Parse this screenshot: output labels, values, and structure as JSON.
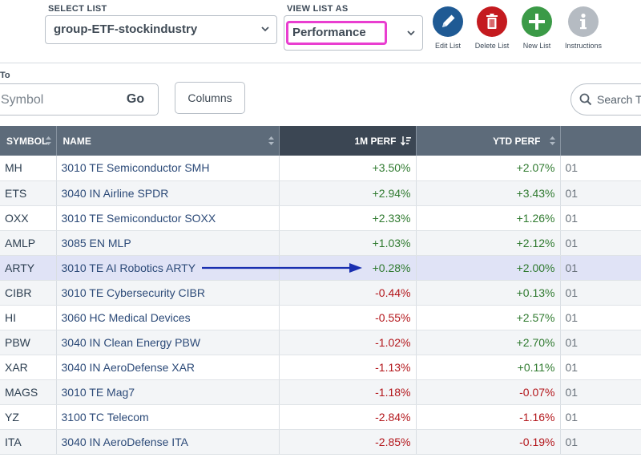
{
  "toolbar": {
    "select_list_label": "SELECT LIST",
    "select_list_value": "group-ETF-stockindustry",
    "view_list_label": "VIEW LIST AS",
    "view_list_value": "Performance",
    "edit_list": "Edit List",
    "delete_list": "Delete List",
    "new_list": "New List",
    "instructions": "Instructions",
    "colors": {
      "edit": "#1f5a94",
      "delete": "#c41a1f",
      "new": "#3b9a47",
      "instructions": "#b5bbc2"
    }
  },
  "symbol_entry": {
    "label": "To",
    "placeholder": "Symbol",
    "go": "Go",
    "columns": "Columns",
    "search_table": "Search Ta"
  },
  "table": {
    "headers": {
      "symbol": "SYMBOL",
      "name": "NAME",
      "perf_1m": "1M PERF",
      "perf_ytd": "YTD PERF"
    },
    "rows": [
      {
        "symbol": "MH",
        "name": "3010 TE Semiconductor SMH",
        "perf_1m": "+3.50%",
        "perf_ytd": "+2.07%",
        "extra": "01"
      },
      {
        "symbol": "ETS",
        "name": "3040 IN Airline SPDR",
        "perf_1m": "+2.94%",
        "perf_ytd": "+3.43%",
        "extra": "01"
      },
      {
        "symbol": "OXX",
        "name": "3010 TE Semiconductor SOXX",
        "perf_1m": "+2.33%",
        "perf_ytd": "+1.26%",
        "extra": "01"
      },
      {
        "symbol": "AMLP",
        "name": "3085 EN MLP",
        "perf_1m": "+1.03%",
        "perf_ytd": "+2.12%",
        "extra": "01"
      },
      {
        "symbol": "ARTY",
        "name": "3010 TE AI Robotics ARTY",
        "perf_1m": "+0.28%",
        "perf_ytd": "+2.00%",
        "extra": "01"
      },
      {
        "symbol": "CIBR",
        "name": "3010 TE Cybersecurity CIBR",
        "perf_1m": "-0.44%",
        "perf_ytd": "+0.13%",
        "extra": "01"
      },
      {
        "symbol": "HI",
        "name": "3060 HC Medical Devices",
        "perf_1m": "-0.55%",
        "perf_ytd": "+2.57%",
        "extra": "01"
      },
      {
        "symbol": "PBW",
        "name": "3040 IN Clean Energy PBW",
        "perf_1m": "-1.02%",
        "perf_ytd": "+2.70%",
        "extra": "01"
      },
      {
        "symbol": "XAR",
        "name": "3040 IN AeroDefense XAR",
        "perf_1m": "-1.13%",
        "perf_ytd": "+0.11%",
        "extra": "01"
      },
      {
        "symbol": "MAGS",
        "name": "3010 TE Mag7",
        "perf_1m": "-1.18%",
        "perf_ytd": "-0.07%",
        "extra": "01"
      },
      {
        "symbol": "YZ",
        "name": "3100 TC Telecom",
        "perf_1m": "-2.84%",
        "perf_ytd": "-1.16%",
        "extra": "01"
      },
      {
        "symbol": "ITA",
        "name": "3040 IN AeroDefense ITA",
        "perf_1m": "-2.85%",
        "perf_ytd": "-0.19%",
        "extra": "01"
      }
    ],
    "highlighted_row_symbol": "ARTY",
    "colors": {
      "positive": "#2f7a2f",
      "negative": "#b3161b",
      "highlight": "#e0e3f6",
      "arrow": "#1a2fb0"
    }
  }
}
